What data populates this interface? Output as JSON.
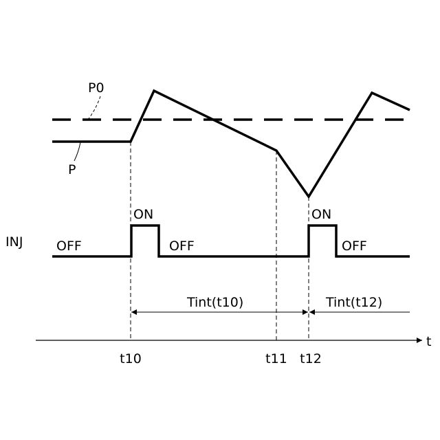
{
  "labels": {
    "p0": "P0",
    "p": "P",
    "inj": "INJ",
    "off1": "OFF",
    "on1": "ON",
    "off2": "OFF",
    "on2": "ON",
    "off3": "OFF",
    "tint1": "Tint(t10)",
    "tint2": "Tint(t12)",
    "t_axis": "t",
    "t10": "t10",
    "t11": "t11",
    "t12": "t12"
  },
  "colors": {
    "line": "#000000",
    "background": "#ffffff"
  }
}
